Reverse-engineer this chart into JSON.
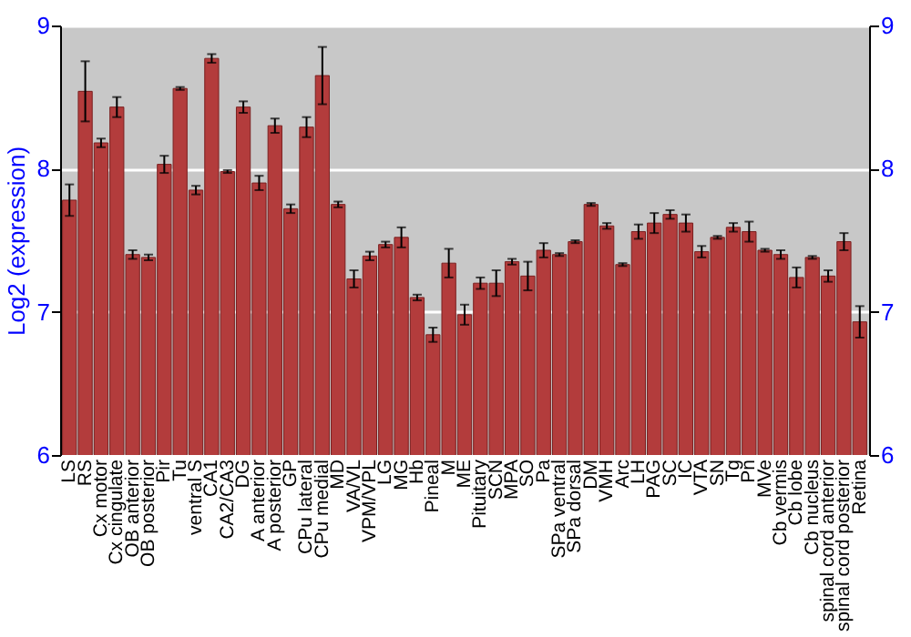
{
  "chart_data": {
    "type": "bar",
    "ylabel": "Log2 (expression)",
    "categories": [
      "LS",
      "RS",
      "Cx motor",
      "Cx cingulate",
      "OB anterior",
      "OB posterior",
      "Pir",
      "Tu",
      "ventral S",
      "CA1",
      "CA2/CA3",
      "DG",
      "A anterior",
      "A posterior",
      "GP",
      "CPu lateral",
      "CPu medial",
      "MD",
      "VA/VL",
      "VPM/VPL",
      "LG",
      "MG",
      "Hb",
      "Pineal",
      "M",
      "ME",
      "Pituitary",
      "SCN",
      "MPA",
      "SO",
      "Pa",
      "SPa ventral",
      "SPa dorsal",
      "DM",
      "VMH",
      "Arc",
      "LH",
      "PAG",
      "SC",
      "IC",
      "VTA",
      "SN",
      "Tg",
      "Pn",
      "MVe",
      "Cb vermis",
      "Cb lobe",
      "Cb nucleus",
      "spinal cord anterior",
      "spinal cord posterior",
      "Retina"
    ],
    "values": [
      7.78,
      8.54,
      8.18,
      8.43,
      7.4,
      7.38,
      8.03,
      8.56,
      7.85,
      8.77,
      7.98,
      8.43,
      7.9,
      8.3,
      7.72,
      8.29,
      8.65,
      7.75,
      7.23,
      7.39,
      7.47,
      7.52,
      7.1,
      6.84,
      7.34,
      6.98,
      7.2,
      7.2,
      7.35,
      7.25,
      7.43,
      7.4,
      7.49,
      7.75,
      7.6,
      7.33,
      7.56,
      7.62,
      7.68,
      7.62,
      7.42,
      7.52,
      7.59,
      7.56,
      7.43,
      7.4,
      7.24,
      7.38,
      7.25,
      7.49,
      6.93
    ],
    "errors": [
      0.11,
      0.21,
      0.03,
      0.07,
      0.03,
      0.02,
      0.06,
      0.01,
      0.03,
      0.03,
      0.01,
      0.04,
      0.05,
      0.05,
      0.03,
      0.07,
      0.2,
      0.02,
      0.06,
      0.03,
      0.02,
      0.07,
      0.02,
      0.05,
      0.1,
      0.07,
      0.04,
      0.09,
      0.02,
      0.1,
      0.05,
      0.01,
      0.01,
      0.01,
      0.02,
      0.01,
      0.05,
      0.07,
      0.03,
      0.06,
      0.04,
      0.01,
      0.03,
      0.07,
      0.01,
      0.03,
      0.07,
      0.01,
      0.04,
      0.06,
      0.11
    ],
    "color": "#b33c3c",
    "ylim": [
      6,
      9
    ],
    "yticks": [
      6,
      7,
      8,
      9
    ],
    "y2lim": [
      6,
      9
    ],
    "y2ticks": [
      6,
      7,
      8,
      9
    ],
    "grid": "y"
  }
}
